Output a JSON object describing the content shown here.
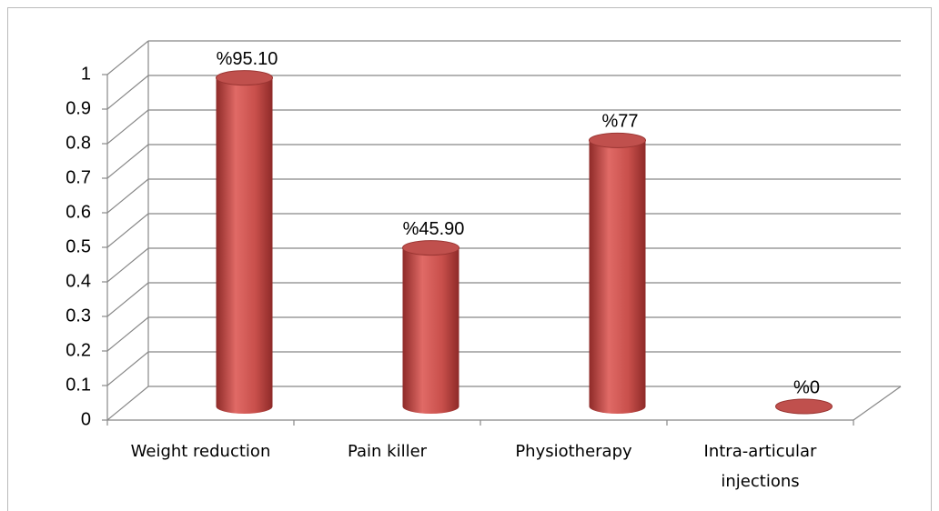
{
  "chart_data": {
    "type": "bar3d",
    "categories": [
      "Weight reduction",
      "Pain killer",
      "Physiotherapy",
      "Intra-articular injections"
    ],
    "values": [
      0.951,
      0.459,
      0.77,
      0
    ],
    "value_labels": [
      "%95.10",
      "%45.90",
      "%77",
      "%0"
    ],
    "color": "#c0504d",
    "ylim": [
      0,
      1
    ],
    "yticks": [
      0,
      0.1,
      0.2,
      0.3,
      0.4,
      0.5,
      0.6,
      0.7,
      0.8,
      0.9,
      1
    ],
    "grid": true
  }
}
